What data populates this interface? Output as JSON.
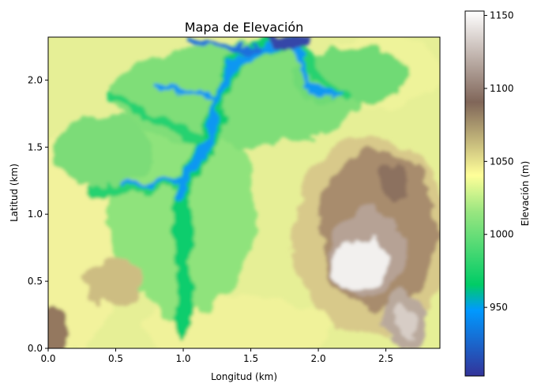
{
  "chart_data": {
    "type": "heatmap",
    "title": "Mapa de Elevación",
    "xlabel": "Longitud (km)",
    "ylabel": "Latitud (km)",
    "xlim": [
      0.0,
      2.9
    ],
    "ylim": [
      0.0,
      2.32
    ],
    "xticks": [
      "0.0",
      "0.5",
      "1.0",
      "1.5",
      "2.0",
      "2.5"
    ],
    "xtick_values": [
      0.0,
      0.5,
      1.0,
      1.5,
      2.0,
      2.5
    ],
    "yticks": [
      "0.0",
      "0.5",
      "1.0",
      "1.5",
      "2.0"
    ],
    "ytick_values": [
      0.0,
      0.5,
      1.0,
      1.5,
      2.0
    ],
    "colormap": "terrain",
    "colorbar": {
      "label": "Elevación (m)",
      "range": [
        903,
        1153
      ],
      "ticks": [
        "950",
        "1000",
        "1050",
        "1100",
        "1150"
      ],
      "tick_values": [
        950,
        1000,
        1050,
        1100,
        1150
      ]
    },
    "features": {
      "peaks": [
        {
          "x": 2.32,
          "y": 0.62,
          "elevation": 1150
        },
        {
          "x": 2.62,
          "y": 0.12,
          "elevation": 1125
        },
        {
          "x": 2.5,
          "y": 1.25,
          "elevation": 1085
        },
        {
          "x": 0.52,
          "y": 0.55,
          "elevation": 1060
        },
        {
          "x": 0.03,
          "y": 0.12,
          "elevation": 1080
        }
      ],
      "valley_low_point": {
        "x": 1.8,
        "y": 2.3,
        "elevation": 905
      }
    }
  }
}
